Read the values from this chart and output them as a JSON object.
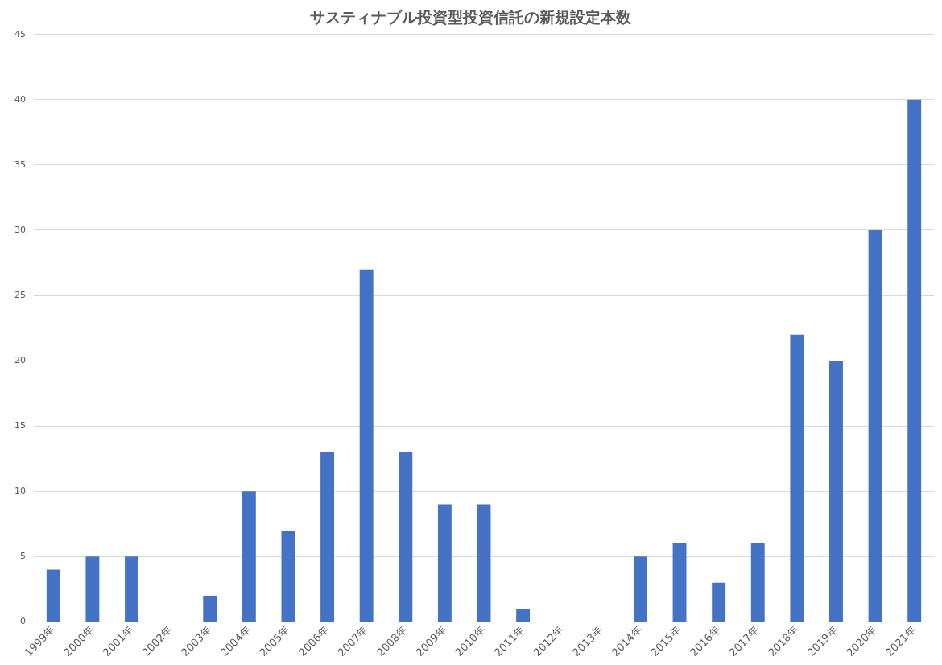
{
  "chart_data": {
    "type": "bar",
    "title": "サスティナブル投資型投資信託の新規設定本数",
    "categories": [
      "1999年",
      "2000年",
      "2001年",
      "2002年",
      "2003年",
      "2004年",
      "2005年",
      "2006年",
      "2007年",
      "2008年",
      "2009年",
      "2010年",
      "2011年",
      "2012年",
      "2013年",
      "2014年",
      "2015年",
      "2016年",
      "2017年",
      "2018年",
      "2019年",
      "2020年",
      "2021年"
    ],
    "values": [
      4,
      5,
      5,
      0,
      2,
      10,
      7,
      13,
      27,
      13,
      9,
      9,
      1,
      0,
      0,
      5,
      6,
      3,
      6,
      22,
      20,
      30,
      40
    ],
    "color": "#4472c4",
    "ylim": [
      0,
      45
    ],
    "yticks": [
      0,
      5,
      10,
      15,
      20,
      25,
      30,
      35,
      40,
      45
    ],
    "grid": "y",
    "legend": false
  }
}
